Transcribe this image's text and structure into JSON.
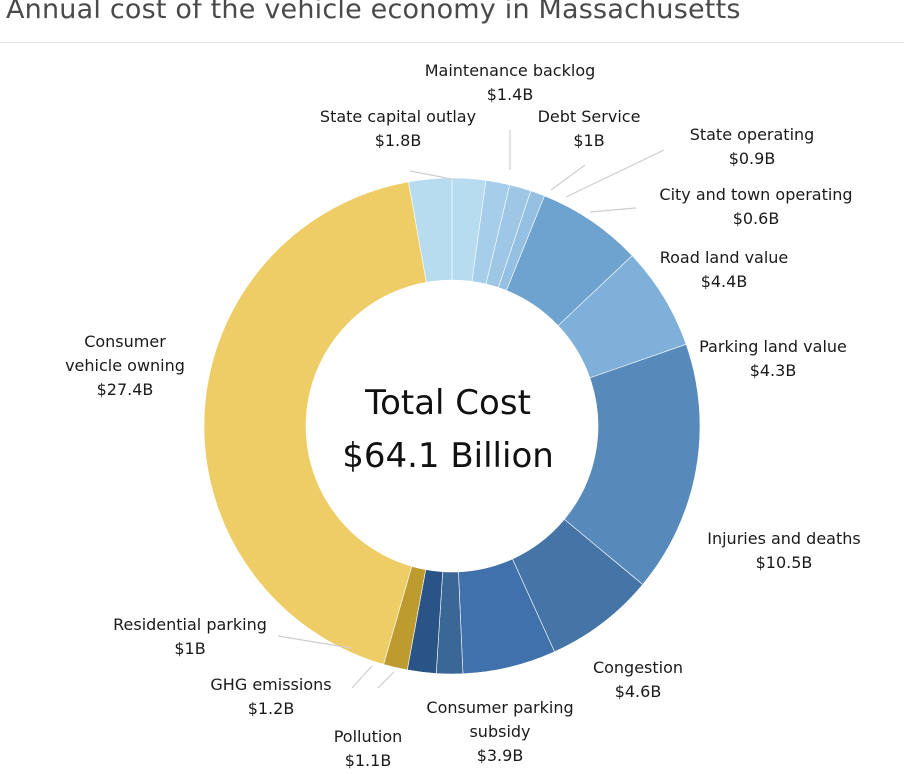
{
  "chart_data": {
    "type": "donut",
    "title": "Annual cost of the vehicle economy in Massachusetts",
    "center_label": [
      "Total Cost",
      "$64.1 Billion"
    ],
    "total": 64.1,
    "unit": "billion USD",
    "segments": [
      {
        "name": "Maintenance backlog",
        "value": 1.4,
        "value_label": "$1.4B",
        "color": "#b7dcef"
      },
      {
        "name": "Debt Service",
        "value": 1.0,
        "value_label": "$1B",
        "color": "#a6cdea"
      },
      {
        "name": "State operating",
        "value": 0.9,
        "value_label": "$0.9B",
        "color": "#9ec7e6"
      },
      {
        "name": "City and town operating",
        "value": 0.6,
        "value_label": "$0.6B",
        "color": "#96c0e2"
      },
      {
        "name": "Road land value",
        "value": 4.4,
        "value_label": "$4.4B",
        "color": "#6fa3cf"
      },
      {
        "name": "Parking land value",
        "value": 4.3,
        "value_label": "$4.3B",
        "color": "#7eb0d9"
      },
      {
        "name": "Injuries and deaths",
        "value": 10.5,
        "value_label": "$10.5B",
        "color": "#5789ba"
      },
      {
        "name": "Congestion",
        "value": 4.6,
        "value_label": "$4.6B",
        "color": "#4574a7"
      },
      {
        "name": "Consumer parking subsidy",
        "value": 3.9,
        "value_label": "$3.9B",
        "color": "#4171ab"
      },
      {
        "name": "Pollution",
        "value": 1.1,
        "value_label": "$1.1B",
        "color": "#3a6796"
      },
      {
        "name": "GHG emissions",
        "value": 1.2,
        "value_label": "$1.2B",
        "color": "#2a5486"
      },
      {
        "name": "Residential parking",
        "value": 1.0,
        "value_label": "$1B",
        "color": "#bd9b2f"
      },
      {
        "name": "Consumer vehicle owning",
        "value": 27.4,
        "value_label": "$27.4B",
        "color": "#eecd66"
      },
      {
        "name": "State capital outlay",
        "value": 1.8,
        "value_label": "$1.8B",
        "color": "#b7dcef"
      }
    ],
    "start_segment": "State capital outlay",
    "direction": "clockwise from 12 o'clock"
  },
  "labels": [
    {
      "seg": 0,
      "lines": [
        "Maintenance backlog",
        "$1.4B"
      ]
    },
    {
      "seg": 1,
      "lines": [
        "Debt Service",
        "$1B"
      ]
    },
    {
      "seg": 2,
      "lines": [
        "State operating",
        "$0.9B"
      ]
    },
    {
      "seg": 3,
      "lines": [
        "City and town operating",
        "$0.6B"
      ]
    },
    {
      "seg": 4,
      "lines": [
        "Road land value",
        "$4.4B"
      ]
    },
    {
      "seg": 5,
      "lines": [
        "Parking land value",
        "$4.3B"
      ]
    },
    {
      "seg": 6,
      "lines": [
        "Injuries and deaths",
        "$10.5B"
      ]
    },
    {
      "seg": 7,
      "lines": [
        "Congestion",
        "$4.6B"
      ]
    },
    {
      "seg": 8,
      "lines": [
        "Consumer parking",
        "subsidy",
        "$3.9B"
      ]
    },
    {
      "seg": 9,
      "lines": [
        "Pollution",
        "$1.1B"
      ]
    },
    {
      "seg": 10,
      "lines": [
        "GHG emissions",
        "$1.2B"
      ]
    },
    {
      "seg": 11,
      "lines": [
        "Residential parking",
        "$1B"
      ]
    },
    {
      "seg": 12,
      "lines": [
        "Consumer",
        "vehicle owning",
        "$27.4B"
      ]
    },
    {
      "seg": 13,
      "lines": [
        "State capital outlay",
        "$1.8B"
      ]
    }
  ]
}
